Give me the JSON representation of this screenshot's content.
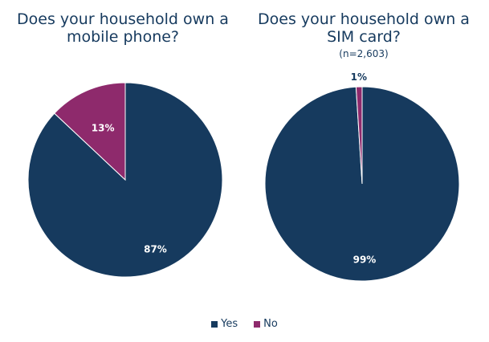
{
  "chart_data": [
    {
      "type": "pie",
      "title": "Does your household own a mobile phone?",
      "subtitle": "",
      "slices": [
        {
          "label": "Yes",
          "value": 87,
          "data_label": "87%",
          "color": "#163a5e"
        },
        {
          "label": "No",
          "value": 13,
          "data_label": "13%",
          "color": "#8e2a6c"
        }
      ]
    },
    {
      "type": "pie",
      "title": "Does your household own a SIM card?",
      "subtitle": "(n=2,603)",
      "slices": [
        {
          "label": "Yes",
          "value": 99,
          "data_label": "99%",
          "color": "#163a5e"
        },
        {
          "label": "No",
          "value": 1,
          "data_label": "1%",
          "color": "#8e2a6c"
        }
      ]
    }
  ],
  "legend": [
    {
      "label": "Yes",
      "color": "#163a5e"
    },
    {
      "label": "No",
      "color": "#8e2a6c"
    }
  ]
}
